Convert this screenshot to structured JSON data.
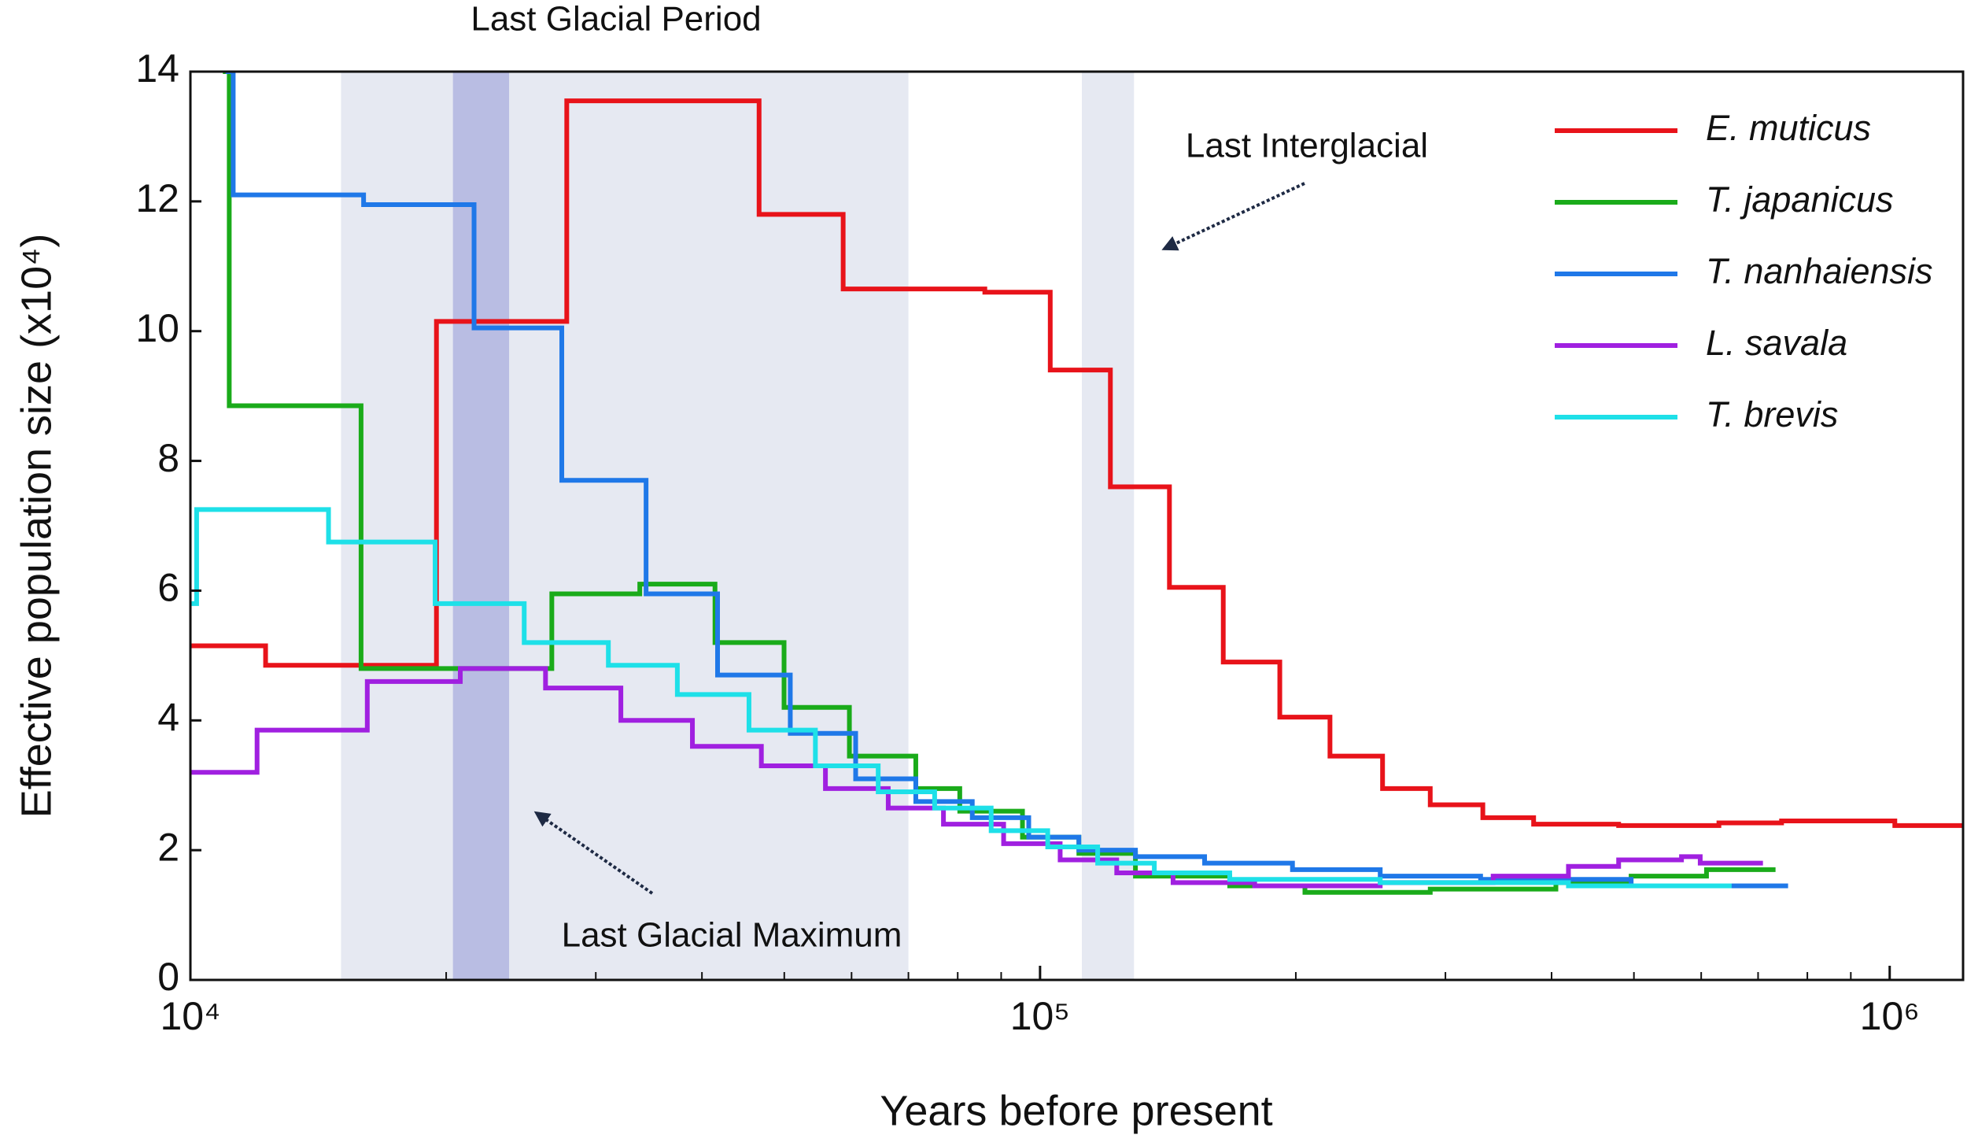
{
  "chart_data": {
    "type": "step",
    "xlabel": "Years before present",
    "ylabel": "Effective population size (x10⁴)",
    "xscale": "log",
    "xlim": [
      10000,
      1220000
    ],
    "ylim": [
      0,
      14
    ],
    "xticks": [
      {
        "value": 10000,
        "label": "10⁴"
      },
      {
        "value": 100000,
        "label": "10⁵"
      },
      {
        "value": 1000000,
        "label": "10⁶"
      }
    ],
    "xminorticks": [
      20000,
      30000,
      40000,
      50000,
      60000,
      70000,
      80000,
      90000,
      200000,
      300000,
      400000,
      500000,
      600000,
      700000,
      800000,
      900000
    ],
    "yticks": [
      0,
      2,
      4,
      6,
      8,
      10,
      12,
      14
    ],
    "legend": "upper right",
    "shaded_regions": [
      {
        "label": "Last Glacial Period",
        "xlim": [
          15040,
          70000
        ],
        "color": "#e6e9f2"
      },
      {
        "label": "Last Glacial Maximum",
        "xlim": [
          20370,
          23720
        ],
        "color": "#b9bde3"
      },
      {
        "label": "Last Interglacial",
        "xlim": [
          112000,
          129000
        ],
        "color": "#e6e9f2"
      }
    ],
    "series": [
      {
        "name": "E. muticus",
        "color": "#e8131a",
        "x": [
          10000,
          12260,
          19480,
          27730,
          46700,
          58650,
          86100,
          102800,
          121000,
          142000,
          164300,
          191500,
          219400,
          253000,
          287900,
          332000,
          381000,
          479700,
          629500,
          746000,
          1014000,
          1220000
        ],
        "values": [
          5.15,
          4.85,
          10.15,
          13.55,
          11.8,
          10.65,
          10.6,
          9.4,
          7.6,
          6.05,
          4.9,
          4.05,
          3.45,
          2.95,
          2.7,
          2.5,
          2.4,
          2.38,
          2.42,
          2.45,
          2.38,
          2.38
        ]
      },
      {
        "name": "T. japanicus",
        "color": "#1aab1a",
        "x": [
          10920,
          11110,
          15880,
          26630,
          33800,
          41440,
          49970,
          59650,
          71410,
          80450,
          95350,
          111100,
          129500,
          167200,
          205000,
          287900,
          404700,
          496200,
          608700,
          733900
        ],
        "values": [
          14,
          8.85,
          4.8,
          5.95,
          6.1,
          5.2,
          4.2,
          3.45,
          2.95,
          2.6,
          2.2,
          1.95,
          1.6,
          1.45,
          1.35,
          1.4,
          1.5,
          1.6,
          1.7,
          1.7
        ]
      },
      {
        "name": "T. nanhaiensis",
        "color": "#1f78e8",
        "x": [
          11000,
          11230,
          15990,
          21570,
          27360,
          34380,
          41730,
          50820,
          60670,
          71410,
          83220,
          96980,
          111100,
          129500,
          156200,
          198200,
          251400,
          330000,
          496200,
          759300
        ],
        "values": [
          14,
          12.1,
          11.95,
          10.05,
          7.7,
          5.95,
          4.7,
          3.8,
          3.1,
          2.75,
          2.5,
          2.2,
          2.0,
          1.9,
          1.8,
          1.7,
          1.6,
          1.55,
          1.45,
          1.45
        ]
      },
      {
        "name": "L. savala",
        "color": "#a020e0",
        "x": [
          10000,
          11980,
          16150,
          20780,
          26180,
          32110,
          38980,
          46990,
          55900,
          66270,
          76970,
          90600,
          105600,
          123100,
          143400,
          178900,
          251400,
          341400,
          418700,
          479700,
          568800,
          598400,
          709300
        ],
        "values": [
          3.2,
          3.85,
          4.6,
          4.8,
          4.5,
          4.0,
          3.6,
          3.3,
          2.95,
          2.65,
          2.4,
          2.1,
          1.85,
          1.65,
          1.5,
          1.45,
          1.5,
          1.6,
          1.75,
          1.85,
          1.9,
          1.8,
          1.8
        ]
      },
      {
        "name": "T. brevis",
        "color": "#1ee0e8",
        "x": [
          10000,
          10170,
          14540,
          19410,
          24710,
          31040,
          37420,
          45440,
          54400,
          64490,
          75150,
          87590,
          102100,
          116900,
          136300,
          167200,
          251400,
          418700,
          651600
        ],
        "values": [
          5.8,
          7.25,
          6.75,
          5.8,
          5.2,
          4.85,
          4.4,
          3.85,
          3.3,
          2.9,
          2.65,
          2.3,
          2.05,
          1.8,
          1.65,
          1.55,
          1.5,
          1.45,
          1.45
        ]
      }
    ]
  }
}
